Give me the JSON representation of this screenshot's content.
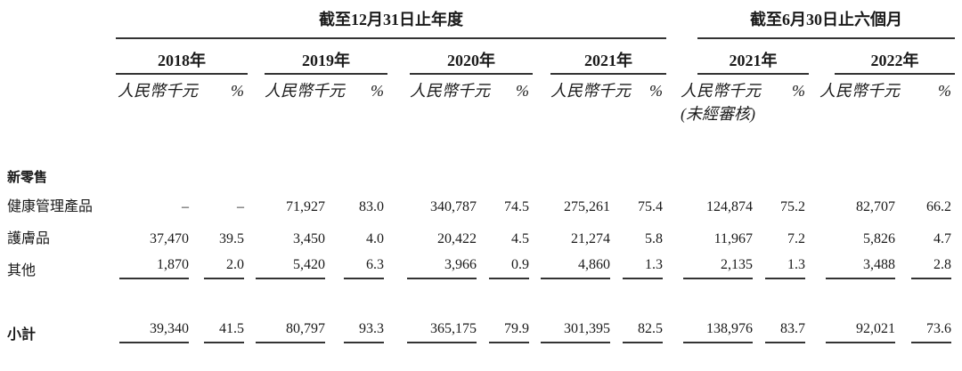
{
  "header": {
    "annual_period": "截至12月31日止年度",
    "interim_period": "截至6月30日止六個月",
    "years": [
      "2018年",
      "2019年",
      "2020年",
      "2021年",
      "2021年",
      "2022年"
    ],
    "currency_unit": "人民幣千元",
    "percent_sign": "%",
    "unaudited": "(未經審核)"
  },
  "section_title": "新零售",
  "rows": [
    {
      "label": "健康管理產品",
      "cells": [
        "–",
        "–",
        "71,927",
        "83.0",
        "340,787",
        "74.5",
        "275,261",
        "75.4",
        "124,874",
        "75.2",
        "82,707",
        "66.2"
      ]
    },
    {
      "label": "護膚品",
      "cells": [
        "37,470",
        "39.5",
        "3,450",
        "4.0",
        "20,422",
        "4.5",
        "21,274",
        "5.8",
        "11,967",
        "7.2",
        "5,826",
        "4.7"
      ]
    },
    {
      "label": "其他",
      "cells": [
        "1,870",
        "2.0",
        "5,420",
        "6.3",
        "3,966",
        "0.9",
        "4,860",
        "1.3",
        "2,135",
        "1.3",
        "3,488",
        "2.8"
      ]
    }
  ],
  "subtotal": {
    "label": "小計",
    "cells": [
      "39,340",
      "41.5",
      "80,797",
      "93.3",
      "365,175",
      "79.9",
      "301,395",
      "82.5",
      "138,976",
      "83.7",
      "92,021",
      "73.6"
    ]
  },
  "colors": {
    "text": "#1a1a1a",
    "rule_line": "#333333",
    "background": "#ffffff"
  }
}
